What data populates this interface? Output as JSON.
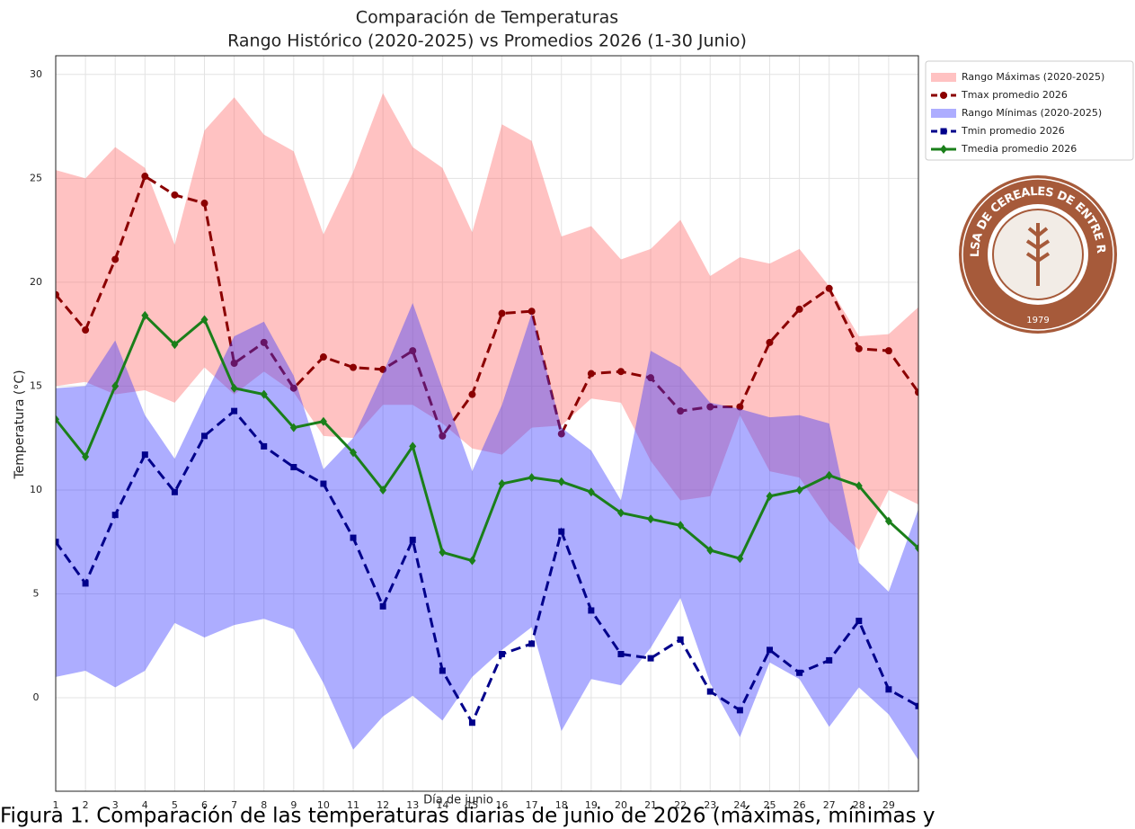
{
  "chart_data": {
    "type": "line",
    "title": "Comparación de Temperaturas",
    "subtitle": "Rango Histórico (2020-2025) vs Promedios 2026 (1-30 Junio)",
    "xlabel": "Día de junio",
    "ylabel": "Temperatura (°C)",
    "x": [
      1,
      2,
      3,
      4,
      5,
      6,
      7,
      8,
      9,
      10,
      11,
      12,
      13,
      14,
      15,
      16,
      17,
      18,
      19,
      20,
      21,
      22,
      23,
      24,
      25,
      26,
      27,
      28,
      29,
      30
    ],
    "xlim": [
      1,
      30
    ],
    "xticks": [
      1,
      2,
      3,
      4,
      5,
      6,
      7,
      8,
      9,
      10,
      11,
      12,
      13,
      14,
      15,
      16,
      17,
      18,
      19,
      20,
      21,
      22,
      23,
      24,
      25,
      26,
      27,
      28,
      29
    ],
    "ylim": [
      -4.5,
      30.9
    ],
    "yticks": [
      0,
      5,
      10,
      15,
      20,
      25,
      30
    ],
    "grid": true,
    "legend": "outside-upper-right",
    "series": [
      {
        "name": "Rango Máximas (2020-2025)",
        "type": "band",
        "color": "#ff6666",
        "upper": [
          25.4,
          25.0,
          26.5,
          25.5,
          21.8,
          27.3,
          28.9,
          27.1,
          26.3,
          22.3,
          25.3,
          29.1,
          26.5,
          25.5,
          22.4,
          27.6,
          26.8,
          22.2,
          22.7,
          21.1,
          21.6,
          23.0,
          20.3,
          21.2,
          20.9,
          21.6,
          19.8,
          17.4,
          17.5,
          18.8
        ],
        "lower": [
          15.0,
          15.2,
          14.6,
          14.8,
          14.2,
          15.9,
          14.6,
          15.7,
          14.7,
          12.6,
          12.5,
          14.1,
          14.1,
          13.2,
          12.0,
          11.7,
          13.0,
          13.1,
          14.4,
          14.2,
          11.4,
          9.5,
          9.7,
          13.6,
          10.9,
          10.6,
          8.5,
          7.1,
          10.0,
          9.3
        ]
      },
      {
        "name": "Tmax promedio 2026",
        "type": "line",
        "color": "#8b0000",
        "linestyle": "dashed",
        "marker": "circle",
        "values": [
          19.4,
          17.7,
          21.1,
          25.1,
          24.2,
          23.8,
          16.1,
          17.1,
          14.9,
          16.4,
          15.9,
          15.8,
          16.7,
          12.6,
          14.6,
          18.5,
          18.6,
          12.7,
          15.6,
          15.7,
          15.4,
          13.8,
          14.0,
          14.0,
          17.1,
          18.7,
          19.7,
          16.8,
          16.7,
          14.7
        ]
      },
      {
        "name": "Rango Mínimas (2020-2025)",
        "type": "band",
        "color": "#3333ff",
        "upper": [
          14.9,
          15.0,
          17.2,
          13.6,
          11.5,
          14.5,
          17.4,
          18.1,
          15.5,
          11.0,
          12.5,
          15.6,
          19.0,
          14.9,
          10.9,
          14.1,
          18.5,
          13.0,
          11.9,
          9.5,
          16.7,
          15.9,
          14.2,
          13.9,
          13.5,
          13.6,
          13.2,
          6.5,
          5.1,
          9.1
        ],
        "lower": [
          1.0,
          1.3,
          0.5,
          1.3,
          3.6,
          2.9,
          3.5,
          3.8,
          3.3,
          0.7,
          -2.5,
          -0.9,
          0.1,
          -1.1,
          1.0,
          2.3,
          3.4,
          -1.6,
          0.9,
          0.6,
          2.4,
          4.8,
          0.7,
          -1.9,
          1.7,
          0.9,
          -1.4,
          0.5,
          -0.8,
          -3.0
        ]
      },
      {
        "name": "Tmin promedio 2026",
        "type": "line",
        "color": "#00008b",
        "linestyle": "dashed",
        "marker": "square",
        "values": [
          7.5,
          5.5,
          8.8,
          11.7,
          9.9,
          12.6,
          13.8,
          12.1,
          11.1,
          10.3,
          7.7,
          4.4,
          7.6,
          1.3,
          -1.2,
          2.1,
          2.6,
          8.0,
          4.2,
          2.1,
          1.9,
          2.8,
          0.3,
          -0.6,
          2.3,
          1.2,
          1.8,
          3.7,
          0.4,
          -0.4
        ]
      },
      {
        "name": "Tmedia promedio 2026",
        "type": "line",
        "color": "#1a7f1a",
        "linestyle": "solid",
        "marker": "diamond",
        "values": [
          13.4,
          11.6,
          15.0,
          18.4,
          17.0,
          18.2,
          14.9,
          14.6,
          13.0,
          13.3,
          11.8,
          10.0,
          12.1,
          7.0,
          6.6,
          10.3,
          10.6,
          10.4,
          9.9,
          8.9,
          8.6,
          8.3,
          7.1,
          6.7,
          9.7,
          10.0,
          10.7,
          10.2,
          8.5,
          7.2
        ]
      }
    ]
  },
  "logo": {
    "text": "BOLSA DE CEREALES DE ENTRE RÍOS",
    "year": "1979"
  },
  "caption": "Figura 1. Comparación de las temperaturas diarias de junio de 2026 (máximas, mínimas y"
}
